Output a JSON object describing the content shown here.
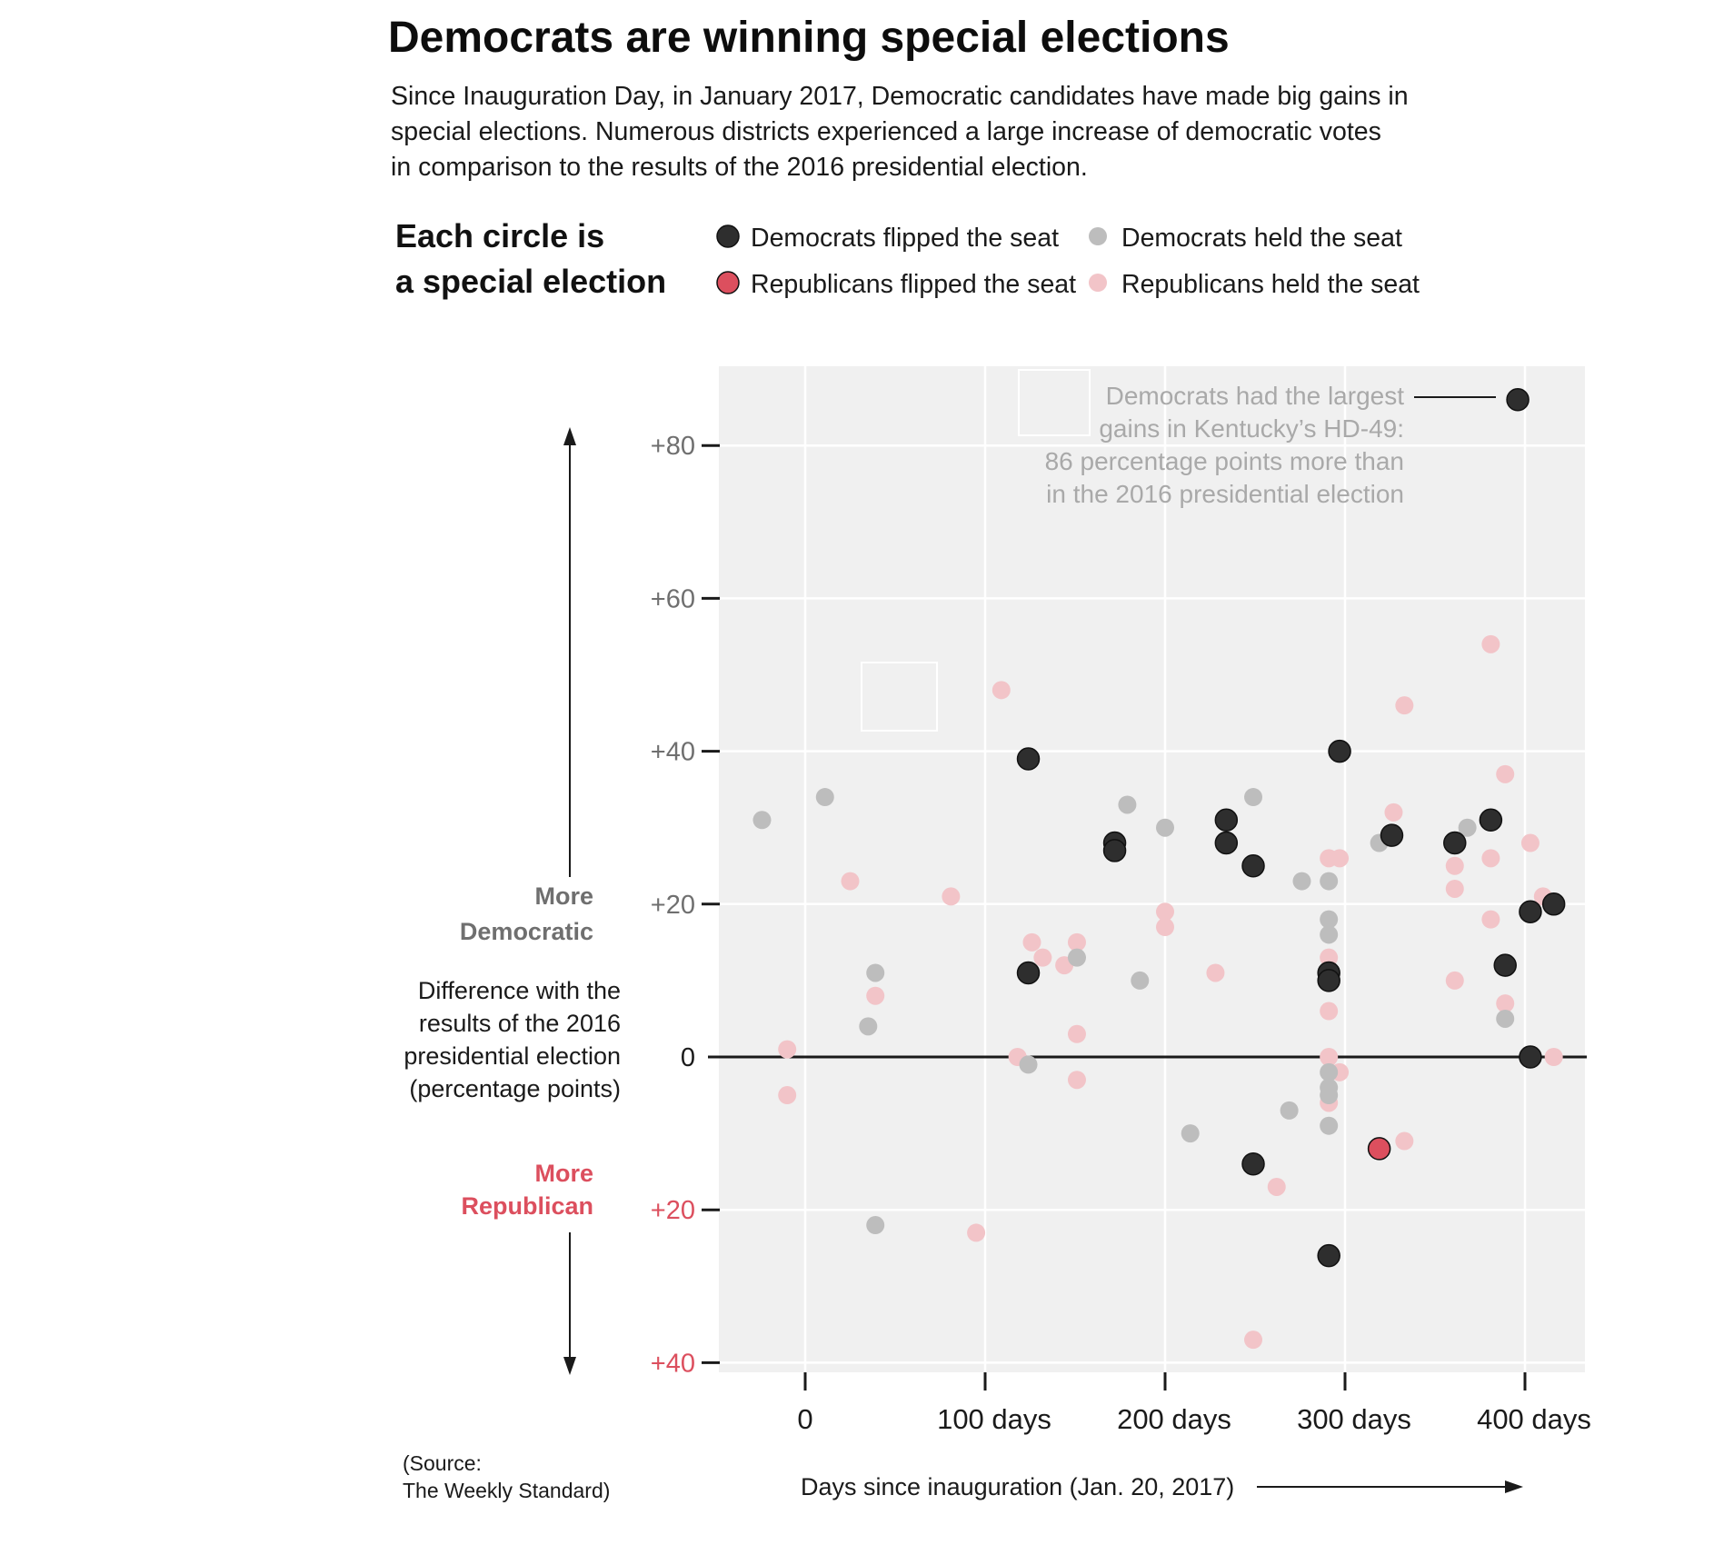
{
  "header": {
    "title": "Democrats are winning special elections",
    "subtitle_lines": [
      "Since Inauguration Day, in January 2017, Democratic candidates have made big gains in",
      "special elections. Numerous districts experienced a large increase of democratic votes",
      "in comparison to the results of the 2016 presidential election."
    ]
  },
  "legend": {
    "heading_lines": [
      "Each circle is",
      "a special election"
    ],
    "items": [
      {
        "label": "Democrats flipped the seat",
        "color": "#2e2e2e"
      },
      {
        "label": "Democrats held the seat",
        "color": "#bdbdbd"
      },
      {
        "label": "Republicans flipped the seat",
        "color": "#dc4f5e"
      },
      {
        "label": "Republicans held the seat",
        "color": "#f2c4c8"
      }
    ]
  },
  "annotation": {
    "lines": [
      "Democrats had the largest",
      "gains in Kentucky’s HD-49:",
      "86 percentage points more than",
      "in the 2016 presidential election"
    ]
  },
  "axes": {
    "more_democratic": [
      "More",
      "Democratic"
    ],
    "y_description": [
      "Difference with the",
      "results of the 2016",
      "presidential election",
      "(percentage points)"
    ],
    "more_republican": [
      "More",
      "Republican"
    ],
    "x_label": "Days since inauguration (Jan. 20, 2017)",
    "source_lines": [
      "(Source:",
      "The Weekly Standard)"
    ]
  },
  "chart_data": {
    "type": "scatter",
    "xlabel": "Days since inauguration (Jan. 20, 2017)",
    "ylabel": "Difference with the results of the 2016 presidential election (percentage points)",
    "xlim": [
      -45,
      440
    ],
    "ylim": [
      -40,
      90
    ],
    "x_ticks": [
      {
        "value": 0,
        "label": "0"
      },
      {
        "value": 100,
        "label": "100 days"
      },
      {
        "value": 200,
        "label": "200 days"
      },
      {
        "value": 300,
        "label": "300 days"
      },
      {
        "value": 400,
        "label": "400 days"
      }
    ],
    "y_ticks": [
      {
        "value": 80,
        "label": "+80",
        "color": "#6f6f6f"
      },
      {
        "value": 60,
        "label": "+60",
        "color": "#6f6f6f"
      },
      {
        "value": 40,
        "label": "+40",
        "color": "#6f6f6f"
      },
      {
        "value": 20,
        "label": "+20",
        "color": "#6f6f6f"
      },
      {
        "value": 0,
        "label": "0",
        "color": "#1a1a1a"
      },
      {
        "value": -20,
        "label": "+20",
        "color": "#dc4f5e"
      },
      {
        "value": -40,
        "label": "+40",
        "color": "#dc4f5e"
      }
    ],
    "grid": true,
    "legend_position": "top",
    "series": [
      {
        "name": "Republicans held the seat",
        "color": "#f2c4c8",
        "points": [
          [
            -10,
            1
          ],
          [
            -10,
            -5
          ],
          [
            25,
            23
          ],
          [
            39,
            8
          ],
          [
            81,
            21
          ],
          [
            95,
            -23
          ],
          [
            109,
            48
          ],
          [
            118,
            0
          ],
          [
            126,
            15
          ],
          [
            132,
            13
          ],
          [
            144,
            12
          ],
          [
            151,
            15
          ],
          [
            151,
            3
          ],
          [
            151,
            -3
          ],
          [
            200,
            19
          ],
          [
            200,
            17
          ],
          [
            228,
            11
          ],
          [
            249,
            -37
          ],
          [
            262,
            -17
          ],
          [
            291,
            26
          ],
          [
            291,
            13
          ],
          [
            291,
            6
          ],
          [
            291,
            0
          ],
          [
            291,
            -6
          ],
          [
            297,
            26
          ],
          [
            297,
            -2
          ],
          [
            327,
            32
          ],
          [
            333,
            46
          ],
          [
            333,
            -11
          ],
          [
            361,
            25
          ],
          [
            361,
            22
          ],
          [
            361,
            10
          ],
          [
            381,
            54
          ],
          [
            381,
            26
          ],
          [
            381,
            18
          ],
          [
            389,
            37
          ],
          [
            389,
            7
          ],
          [
            403,
            28
          ],
          [
            410,
            21
          ],
          [
            416,
            0
          ]
        ]
      },
      {
        "name": "Democrats held the seat",
        "color": "#bdbdbd",
        "points": [
          [
            -24,
            31
          ],
          [
            11,
            34
          ],
          [
            35,
            4
          ],
          [
            39,
            11
          ],
          [
            39,
            -22
          ],
          [
            124,
            -1
          ],
          [
            151,
            13
          ],
          [
            179,
            33
          ],
          [
            186,
            10
          ],
          [
            200,
            30
          ],
          [
            214,
            -10
          ],
          [
            249,
            34
          ],
          [
            269,
            -7
          ],
          [
            276,
            23
          ],
          [
            291,
            23
          ],
          [
            291,
            18
          ],
          [
            291,
            16
          ],
          [
            291,
            -2
          ],
          [
            291,
            -4
          ],
          [
            291,
            -5
          ],
          [
            291,
            -9
          ],
          [
            319,
            28
          ],
          [
            368,
            30
          ],
          [
            389,
            5
          ]
        ]
      },
      {
        "name": "Republicans flipped the seat",
        "color": "#dc4f5e",
        "points": [
          [
            319,
            -12
          ]
        ]
      },
      {
        "name": "Democrats flipped the seat",
        "color": "#2e2e2e",
        "points": [
          [
            124,
            39
          ],
          [
            124,
            11
          ],
          [
            172,
            28
          ],
          [
            172,
            27
          ],
          [
            234,
            31
          ],
          [
            234,
            28
          ],
          [
            249,
            25
          ],
          [
            249,
            -14
          ],
          [
            291,
            11
          ],
          [
            291,
            10
          ],
          [
            297,
            40
          ],
          [
            291,
            -26
          ],
          [
            326,
            29
          ],
          [
            361,
            28
          ],
          [
            381,
            31
          ],
          [
            403,
            19
          ],
          [
            389,
            12
          ],
          [
            416,
            20
          ],
          [
            403,
            0
          ],
          [
            396,
            86
          ]
        ]
      }
    ]
  }
}
